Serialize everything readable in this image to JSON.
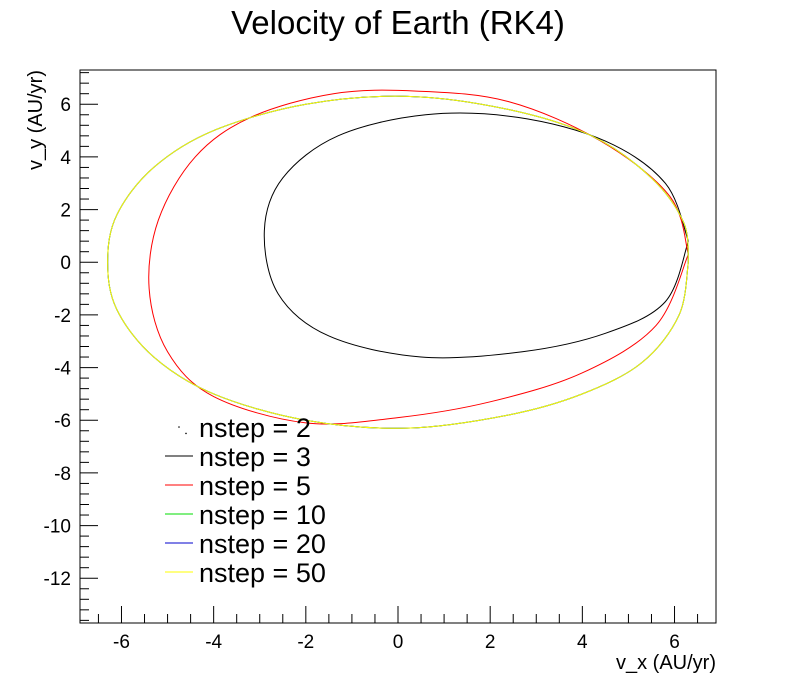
{
  "chart_data": {
    "type": "line",
    "title": "Velocity of Earth (RK4)",
    "xlabel": "v_x (AU/yr)",
    "ylabel": "v_y (AU/yr)",
    "xlim": [
      -6.9,
      6.9
    ],
    "ylim": [
      -13.7,
      7.3
    ],
    "x_ticks": [
      -6,
      -4,
      -2,
      0,
      2,
      4,
      6
    ],
    "y_ticks": [
      -12,
      -10,
      -8,
      -6,
      -4,
      -2,
      0,
      2,
      4,
      6
    ],
    "grid": false,
    "legend_position": "bottom-left",
    "series": [
      {
        "name": "nstep = 2",
        "color": "#000000",
        "legend_marker": "dot",
        "x": [
          -4.6
        ],
        "y": [
          -6.5
        ]
      },
      {
        "name": "nstep = 3",
        "color": "#000000",
        "x": [
          6.3,
          5.8,
          4.5,
          2.7,
          0.5,
          -1.5,
          -2.6,
          -2.9,
          -2.5,
          -1.3,
          0.6,
          2.6,
          4.5,
          5.8,
          6.3
        ],
        "y": [
          0.8,
          -1.5,
          -2.7,
          -3.4,
          -3.6,
          -2.8,
          -1.2,
          1.2,
          3.2,
          4.8,
          5.6,
          5.5,
          4.6,
          3.0,
          0.8
        ]
      },
      {
        "name": "nstep = 5",
        "color": "#ff0000",
        "x": [
          6.3,
          5.6,
          4.0,
          2.0,
          0.0,
          -2.0,
          -4.0,
          -5.0,
          -5.4,
          -5.2,
          -4.4,
          -3.2,
          -1.4,
          0.4,
          2.4,
          4.4,
          5.9,
          6.3
        ],
        "y": [
          0.3,
          -2.4,
          -4.2,
          -5.3,
          -5.9,
          -6.1,
          -5.1,
          -3.4,
          -1.0,
          1.6,
          4.0,
          5.5,
          6.4,
          6.5,
          6.1,
          4.6,
          2.5,
          0.3
        ]
      },
      {
        "name": "nstep = 10",
        "color": "#00dd00",
        "x": [
          6.3,
          6.1,
          5.3,
          4.0,
          2.4,
          0.2,
          -2.0,
          -4.0,
          -5.3,
          -6.1,
          -6.3,
          -6.1,
          -5.3,
          -4.0,
          -2.0,
          0.2,
          2.4,
          4.2,
          5.5,
          6.2,
          6.3
        ],
        "y": [
          0.0,
          -2.0,
          -3.8,
          -5.0,
          -5.8,
          -6.3,
          -6.0,
          -5.0,
          -3.6,
          -1.8,
          0.0,
          1.8,
          3.6,
          5.0,
          6.0,
          6.3,
          5.8,
          4.8,
          3.2,
          1.5,
          0.0
        ]
      },
      {
        "name": "nstep = 20",
        "color": "#0000cc",
        "x": [
          6.3,
          6.1,
          5.3,
          4.0,
          2.4,
          0.2,
          -2.0,
          -4.0,
          -5.3,
          -6.1,
          -6.3,
          -6.1,
          -5.3,
          -4.0,
          -2.0,
          0.2,
          2.4,
          4.2,
          5.5,
          6.2,
          6.3
        ],
        "y": [
          0.0,
          -2.0,
          -3.8,
          -5.0,
          -5.8,
          -6.3,
          -6.0,
          -5.0,
          -3.6,
          -1.8,
          0.0,
          1.8,
          3.6,
          5.0,
          6.0,
          6.3,
          5.8,
          4.8,
          3.2,
          1.5,
          0.0
        ]
      },
      {
        "name": "nstep = 50",
        "color": "#ffff00",
        "x": [
          6.3,
          6.1,
          5.3,
          4.0,
          2.4,
          0.2,
          -2.0,
          -4.0,
          -5.3,
          -6.1,
          -6.3,
          -6.1,
          -5.3,
          -4.0,
          -2.0,
          0.2,
          2.4,
          4.2,
          5.5,
          6.2,
          6.3
        ],
        "y": [
          0.0,
          -2.0,
          -3.8,
          -5.0,
          -5.8,
          -6.3,
          -6.0,
          -5.0,
          -3.6,
          -1.8,
          0.0,
          1.8,
          3.6,
          5.0,
          6.0,
          6.3,
          5.8,
          4.8,
          3.2,
          1.5,
          0.0
        ]
      }
    ]
  }
}
